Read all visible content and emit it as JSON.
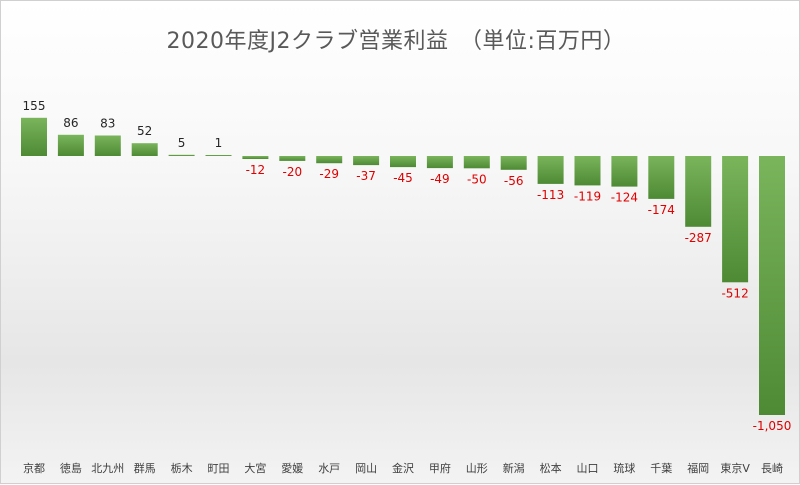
{
  "chart_data": {
    "type": "bar",
    "title": "2020年度J2クラブ営業利益　（単位:百万円）",
    "xlabel": "",
    "ylabel": "",
    "ylim": [
      -1050,
      155
    ],
    "grid": false,
    "legend": "none",
    "categories": [
      "京都",
      "徳島",
      "北九州",
      "群馬",
      "栃木",
      "町田",
      "大宮",
      "愛媛",
      "水戸",
      "岡山",
      "金沢",
      "甲府",
      "山形",
      "新潟",
      "松本",
      "山口",
      "琉球",
      "千葉",
      "福岡",
      "東京V",
      "長崎"
    ],
    "values": [
      155,
      86,
      83,
      52,
      5,
      1,
      -12,
      -20,
      -29,
      -37,
      -45,
      -49,
      -50,
      -56,
      -113,
      -119,
      -124,
      -174,
      -287,
      -512,
      -1050
    ],
    "data_labels": [
      "155",
      "86",
      "83",
      "52",
      "5",
      "1",
      "-12",
      "-20",
      "-29",
      "-37",
      "-45",
      "-49",
      "-50",
      "-56",
      "-113",
      "-119",
      "-124",
      "-174",
      "-287",
      "-512",
      "-1,050"
    ],
    "colors": {
      "bar_light": "#7ab55c",
      "bar_dark": "#4e8a34",
      "positive_label": "#262626",
      "negative_label": "#e00000",
      "category_label": "#404040"
    }
  }
}
